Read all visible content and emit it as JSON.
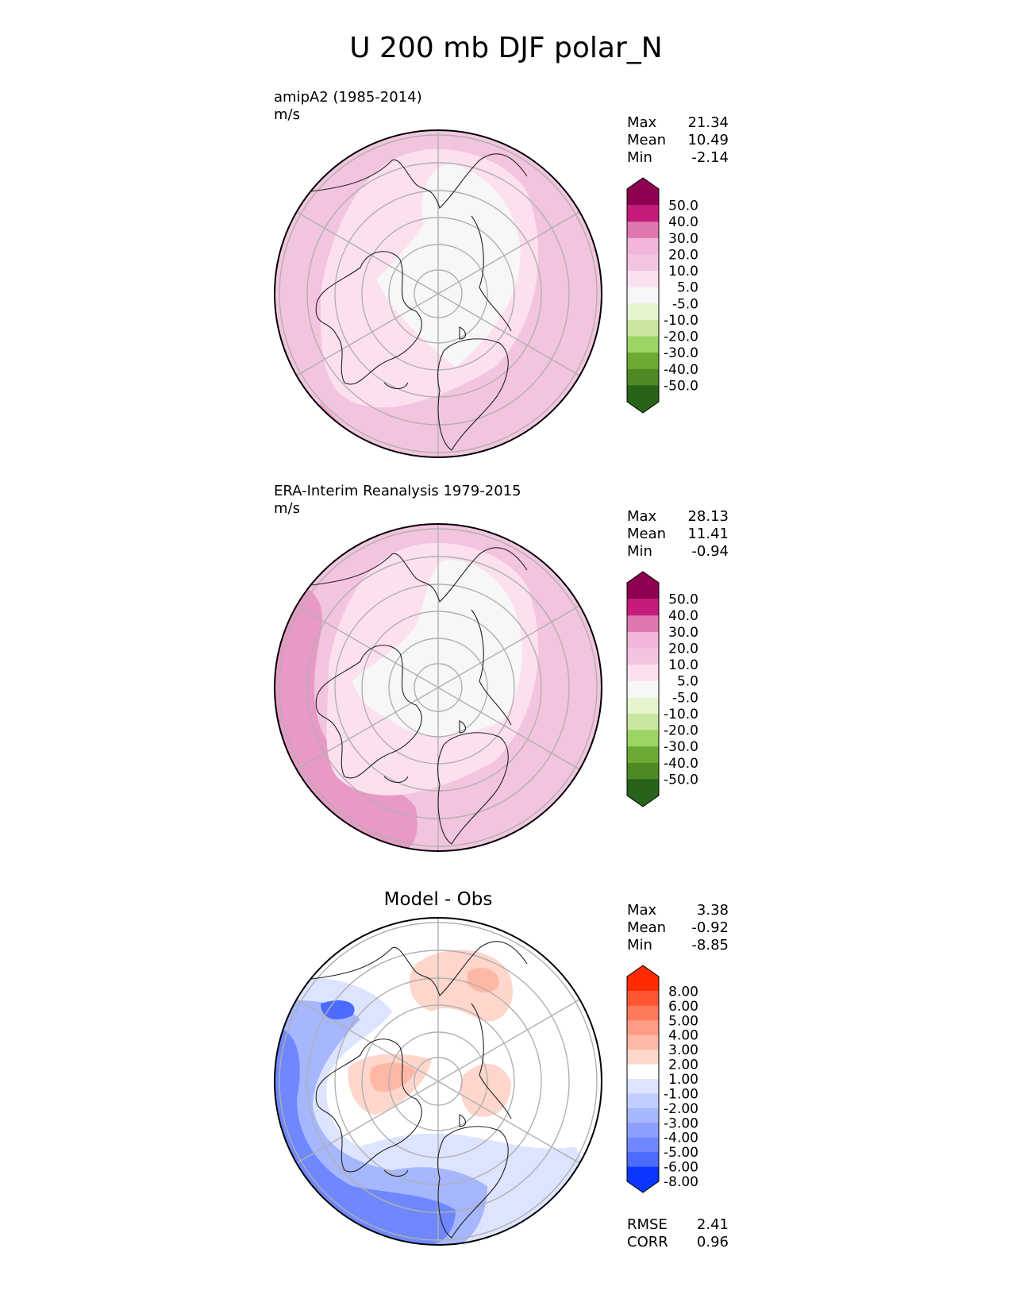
{
  "figure": {
    "title": "U 200 mb DJF polar_N"
  },
  "panels": [
    {
      "id": "test",
      "title": "amipA2 (1985-2014)",
      "units": "m/s",
      "stats": {
        "max_label": "Max",
        "max": "21.34",
        "mean_label": "Mean",
        "mean": "10.49",
        "min_label": "Min",
        "min": "-2.14"
      },
      "colorbar": {
        "labels": [
          "50.0",
          "40.0",
          "30.0",
          "20.0",
          "10.0",
          "5.0",
          "-5.0",
          "-10.0",
          "-20.0",
          "-30.0",
          "-40.0",
          "-50.0"
        ],
        "colors": [
          "#8e0152",
          "#c51b7d",
          "#de77ae",
          "#f1b6da",
          "#f3c4e0",
          "#fde0ef",
          "#f7f7f7",
          "#e6f5d0",
          "#c9e7a0",
          "#9cd465",
          "#6bab35",
          "#4d8a24",
          "#276419"
        ]
      }
    },
    {
      "id": "reference",
      "title": "ERA-Interim Reanalysis 1979-2015",
      "units": "m/s",
      "stats": {
        "max_label": "Max",
        "max": "28.13",
        "mean_label": "Mean",
        "mean": "11.41",
        "min_label": "Min",
        "min": "-0.94"
      },
      "colorbar": {
        "labels": [
          "50.0",
          "40.0",
          "30.0",
          "20.0",
          "10.0",
          "5.0",
          "-5.0",
          "-10.0",
          "-20.0",
          "-30.0",
          "-40.0",
          "-50.0"
        ],
        "colors": [
          "#8e0152",
          "#c51b7d",
          "#de77ae",
          "#f1b6da",
          "#f3c4e0",
          "#fde0ef",
          "#f7f7f7",
          "#e6f5d0",
          "#c9e7a0",
          "#9cd465",
          "#6bab35",
          "#4d8a24",
          "#276419"
        ]
      }
    },
    {
      "id": "diff",
      "title": "Model - Obs",
      "stats": {
        "max_label": "Max",
        "max": "3.38",
        "mean_label": "Mean",
        "mean": "-0.92",
        "min_label": "Min",
        "min": "-8.85"
      },
      "metrics": {
        "rmse_label": "RMSE",
        "rmse": "2.41",
        "corr_label": "CORR",
        "corr": "0.96"
      },
      "colorbar": {
        "labels": [
          "8.00",
          "6.00",
          "5.00",
          "4.00",
          "3.00",
          "2.00",
          "1.00",
          "-1.00",
          "-2.00",
          "-3.00",
          "-4.00",
          "-5.00",
          "-6.00",
          "-8.00"
        ],
        "colors": [
          "#ff2a00",
          "#ff5533",
          "#ff7a5a",
          "#ff9c85",
          "#ffb8a6",
          "#ffd6cb",
          "#ffffff",
          "#dde4ff",
          "#c2cdff",
          "#a6b6ff",
          "#8c9fff",
          "#6f88ff",
          "#4c6bff",
          "#0a36ff"
        ]
      }
    }
  ]
}
